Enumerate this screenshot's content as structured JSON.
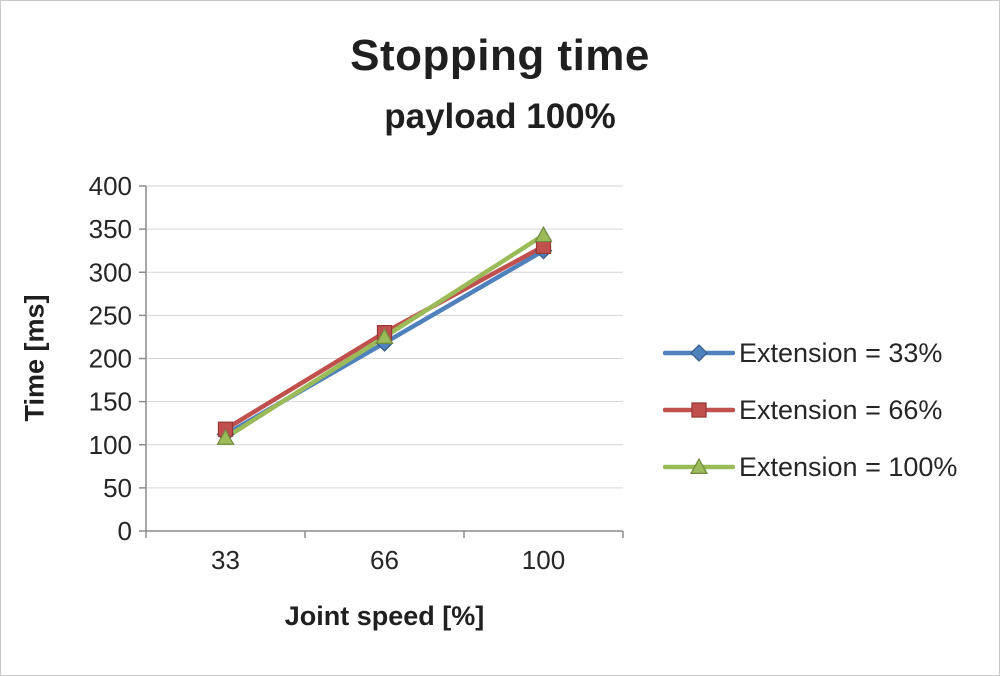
{
  "chart_data": {
    "type": "line",
    "title": "Stopping time",
    "subtitle": "payload 100%",
    "xlabel": "Joint speed [%]",
    "ylabel": "Time [ms]",
    "categories": [
      "33",
      "66",
      "100"
    ],
    "ylim": [
      0,
      400
    ],
    "y_ticks": [
      0,
      50,
      100,
      150,
      200,
      250,
      300,
      350,
      400
    ],
    "grid": true,
    "legend_position": "right",
    "series": [
      {
        "name": "Extension = 33%",
        "marker": "diamond",
        "color": "#4F81BD",
        "edge": "#385D8A",
        "values": [
          112,
          218,
          325
        ]
      },
      {
        "name": "Extension = 66%",
        "marker": "square",
        "color": "#C0504D",
        "edge": "#953735",
        "values": [
          118,
          230,
          330
        ]
      },
      {
        "name": "Extension = 100%",
        "marker": "triangle",
        "color": "#9BBB59",
        "edge": "#71893F",
        "values": [
          108,
          225,
          343
        ]
      }
    ]
  }
}
